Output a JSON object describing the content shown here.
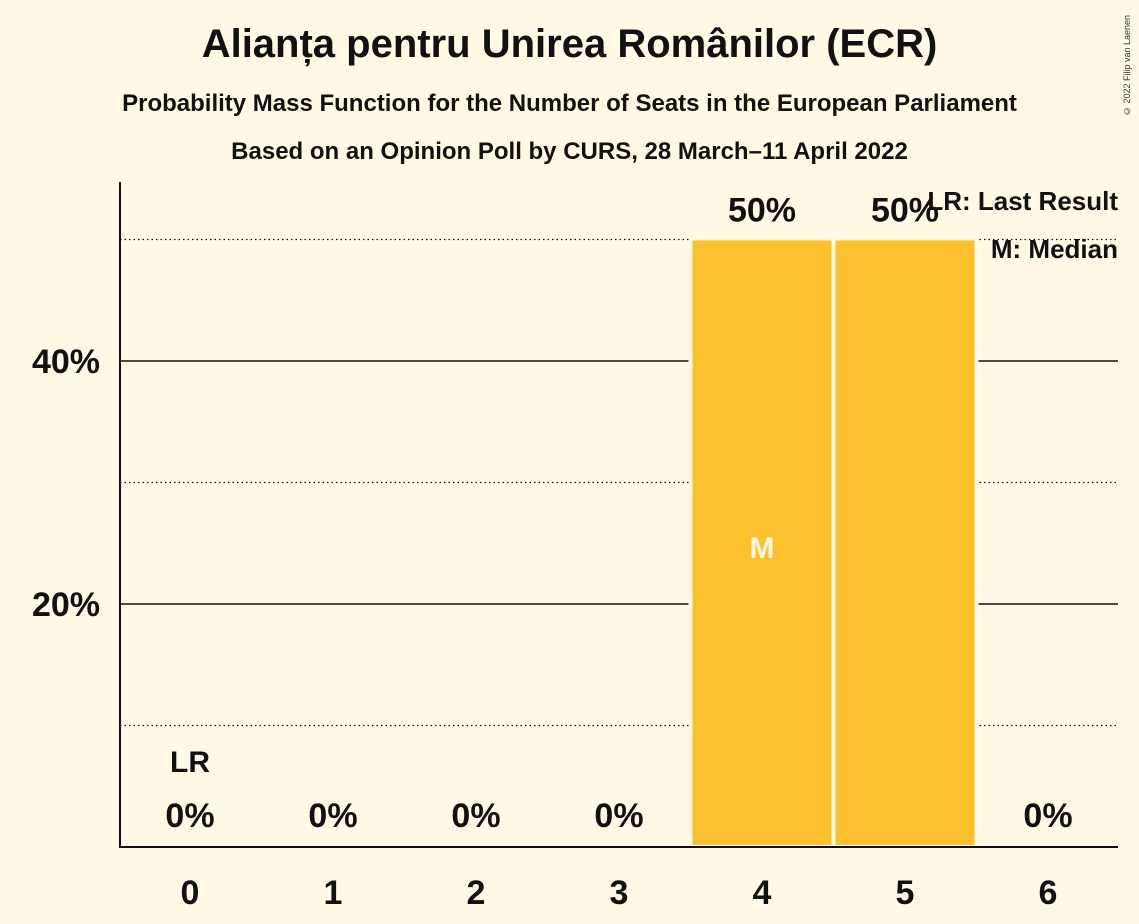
{
  "title": "Alianța pentru Unirea Românilor (ECR)",
  "subtitle_1": "Probability Mass Function for the Number of Seats in the European Parliament",
  "subtitle_2": "Based on an Opinion Poll by CURS, 28 March–11 April 2022",
  "copyright": "© 2022 Filip van Laenen",
  "legend": {
    "last_result": "LR: Last Result",
    "median": "M: Median"
  },
  "colors": {
    "bar": "#FBC02D",
    "background": "#FFF9E5",
    "text": "#111111"
  },
  "chart_data": {
    "type": "bar",
    "categories": [
      "0",
      "1",
      "2",
      "3",
      "4",
      "5",
      "6"
    ],
    "values": [
      0,
      0,
      0,
      0,
      50,
      50,
      0
    ],
    "value_labels": [
      "0%",
      "0%",
      "0%",
      "0%",
      "50%",
      "50%",
      "0%"
    ],
    "ylim": [
      0,
      55
    ],
    "yticks": [
      20,
      40
    ],
    "ytick_labels": [
      "20%",
      "40%"
    ],
    "minor_gridlines": [
      10,
      30,
      50
    ],
    "last_result_seat": "0",
    "last_result_label": "LR",
    "median_seat": "4",
    "median_label": "M",
    "legend_position": "top-right",
    "grid": true
  }
}
